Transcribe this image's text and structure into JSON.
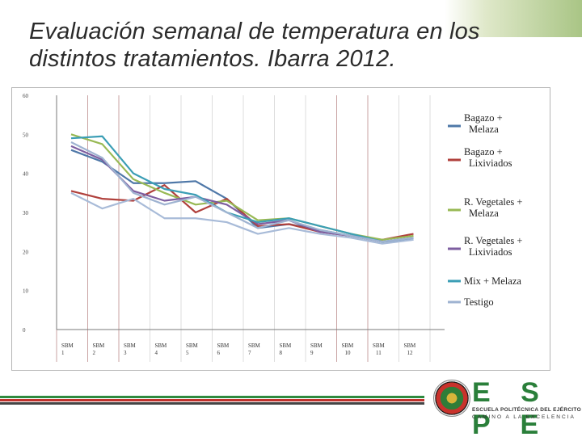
{
  "page": {
    "title": "Evaluación semanal de temperatura en los distintos tratamientos. Ibarra 2012."
  },
  "colors": {
    "stripe_green": "#2e8a3e",
    "stripe_red": "#c0302b",
    "stripe_dark": "#444444"
  },
  "logo": {
    "letters": "E S P E",
    "subtitle": "ESCUELA POLITÉCNICA DEL EJÉRCITO",
    "motto": "CAMINO A LA EXCELENCIA"
  },
  "chart_data": {
    "type": "line",
    "title": "",
    "xlabel": "",
    "ylabel": "",
    "ylim": [
      0,
      60
    ],
    "yticks": [
      "0",
      "10",
      "20",
      "30",
      "40",
      "50",
      "60"
    ],
    "categories": [
      "SBM 1",
      "SBM 2",
      "SBM 3",
      "SBM 4",
      "SBM 5",
      "SBM 6",
      "SBM 7",
      "SBM 8",
      "SBM 9",
      "SBM 10",
      "SBM 11",
      "SBM 12"
    ],
    "legend_position": "right",
    "series": [
      {
        "name": "Bagazo + Melaza",
        "color": "#4f78a8",
        "values": [
          46,
          43,
          37.5,
          37.5,
          38,
          33.5,
          26,
          27,
          25.5,
          24,
          22.5,
          23
        ]
      },
      {
        "name": "Bagazo + Lixiviados",
        "color": "#b0403c",
        "values": [
          35.5,
          33.5,
          33,
          37,
          30,
          33.5,
          26.5,
          27,
          25,
          24,
          23,
          24.5
        ]
      },
      {
        "name": "R. Vegetales + Melaza",
        "color": "#98b954",
        "values": [
          50,
          47.5,
          38.5,
          35,
          32,
          33,
          28,
          28.5,
          26.5,
          24.5,
          23,
          24
        ]
      },
      {
        "name": "R. Vegetales + Lixiviados",
        "color": "#7d5ea0",
        "values": [
          47,
          43.5,
          35.5,
          33,
          34,
          32,
          27,
          28,
          25,
          24,
          22.5,
          23.5
        ]
      },
      {
        "name": "Mix + Melaza",
        "color": "#3b9eb5",
        "values": [
          49,
          49.5,
          40,
          36,
          34.5,
          30,
          27.5,
          28.5,
          26.5,
          24.5,
          22.5,
          23.5
        ]
      },
      {
        "name": "Testigo",
        "color": "#9fb3d1",
        "values": [
          48,
          44,
          35,
          32,
          34,
          30,
          26,
          28,
          25.5,
          24,
          22.5,
          23.5
        ]
      },
      {
        "name": "",
        "color": "#a8bbd8",
        "values": [
          35,
          31,
          33.5,
          28.5,
          28.5,
          27.5,
          24.5,
          26,
          24.5,
          23.5,
          22,
          23
        ]
      }
    ]
  }
}
